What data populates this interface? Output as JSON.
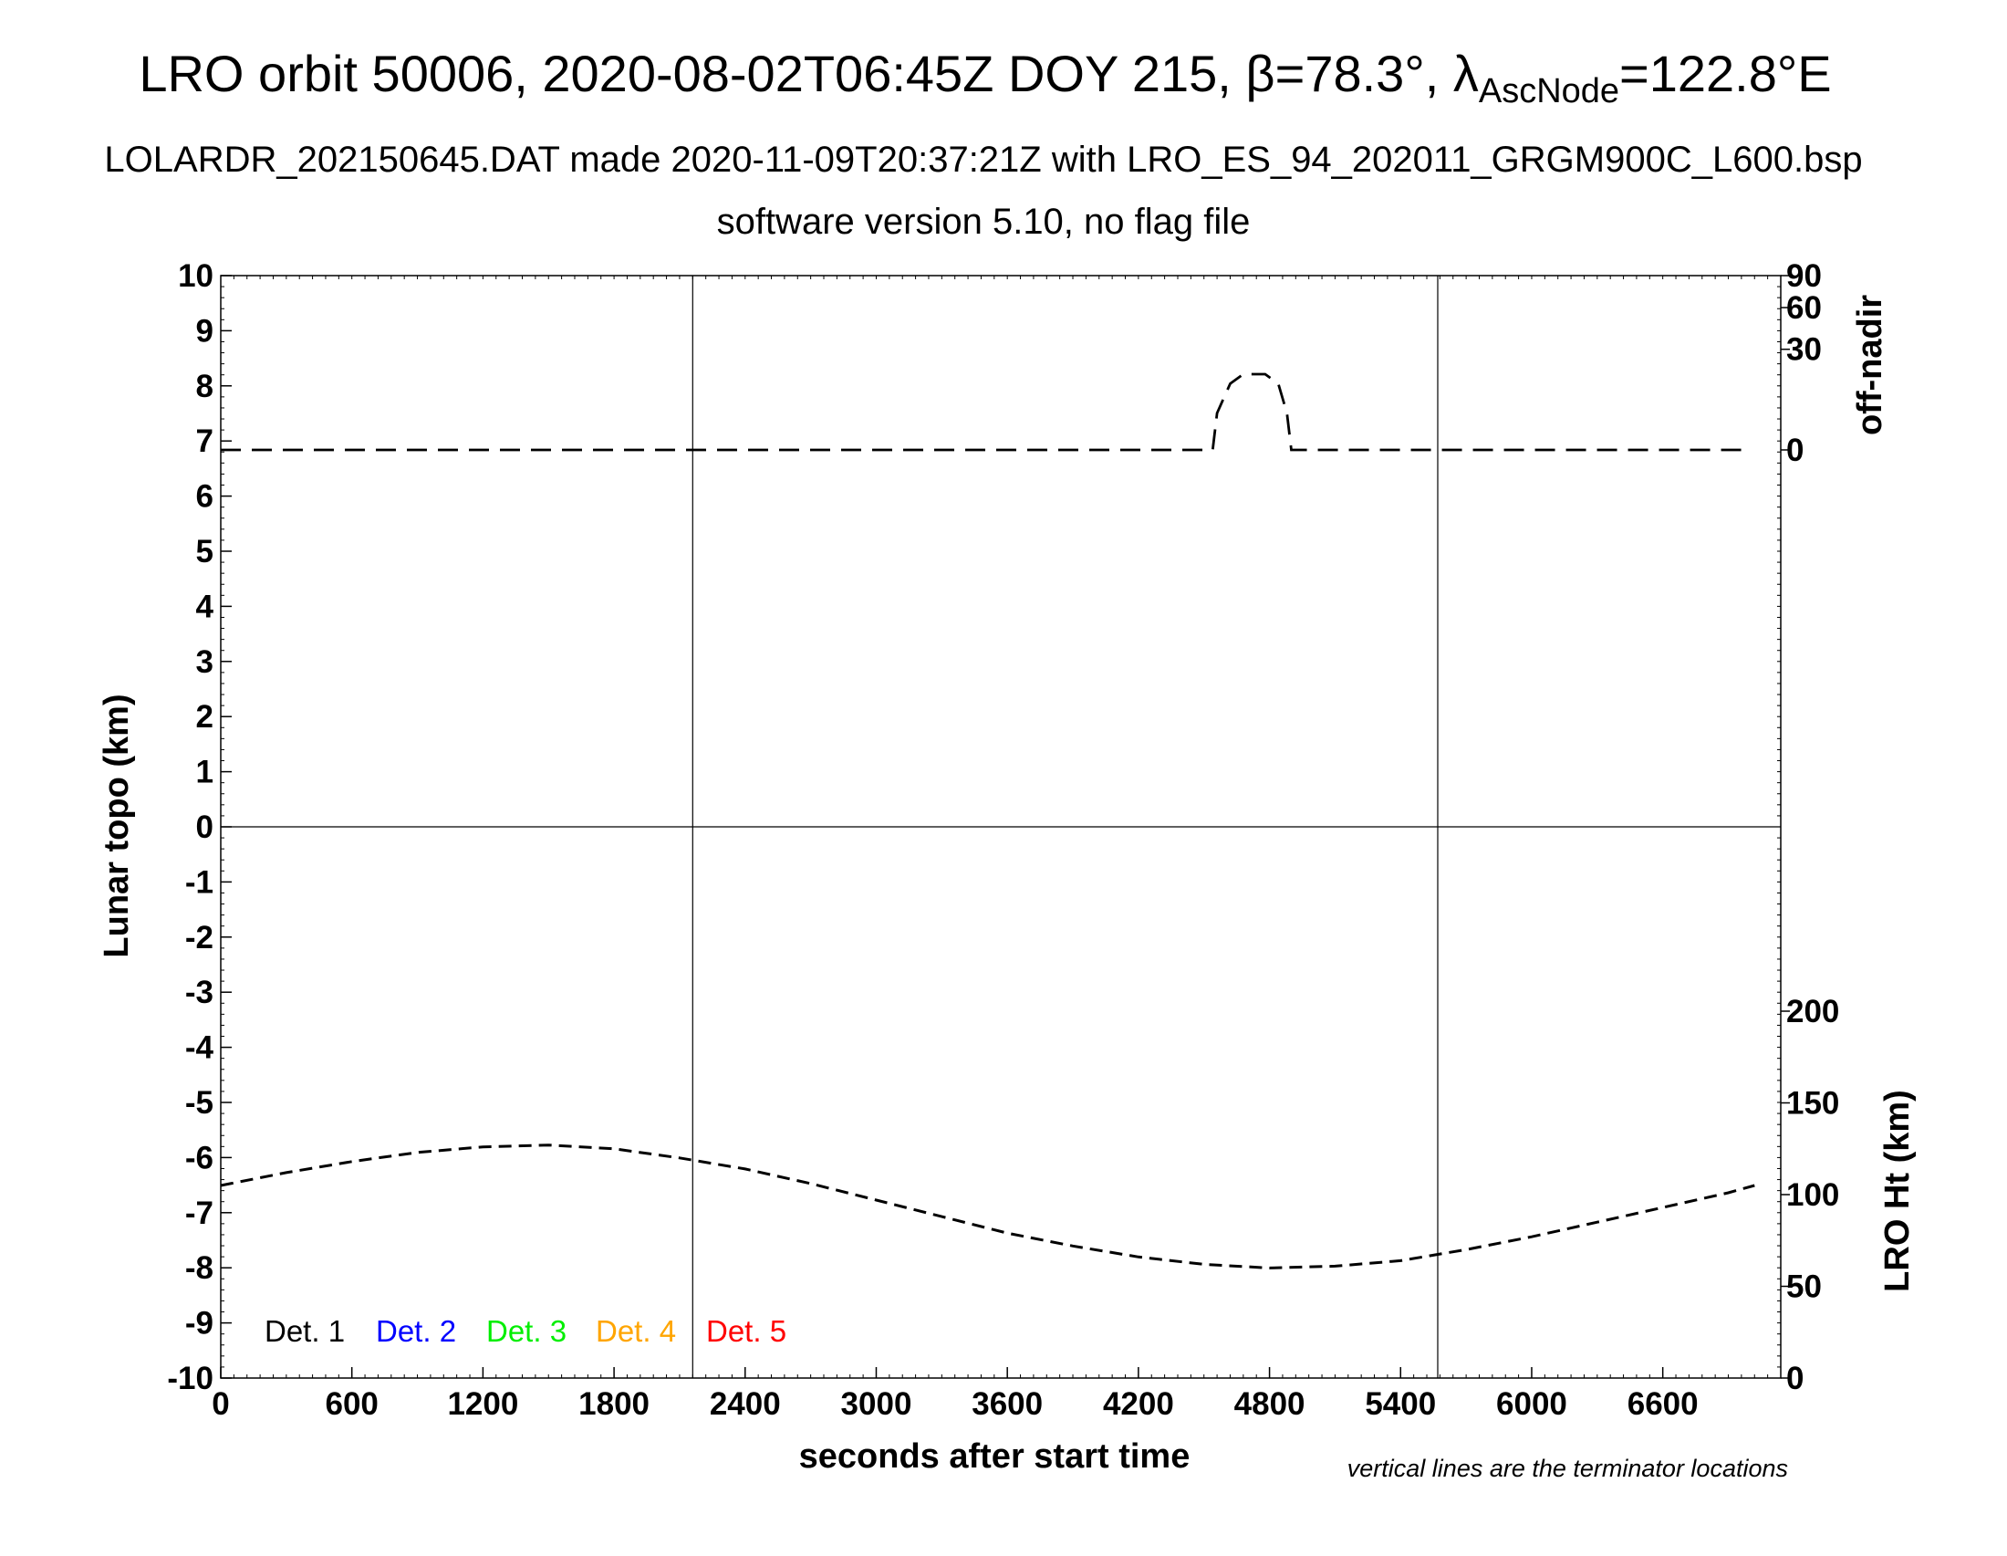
{
  "chart_data": {
    "type": "line",
    "title": {
      "main": "LRO orbit 50006, 2020-08-02T06:45Z DOY 215, ",
      "beta_symbol": "β",
      "beta_value": "=78.3°, ",
      "lambda_symbol": "λ",
      "lambda_sub": "AscNode",
      "lambda_value": "=122.8°E"
    },
    "subtitle": "LOLARDR_202150645.DAT made 2020-11-09T20:37:21Z with LRO_ES_94_202011_GRGM900C_L600.bsp",
    "subtitle2": "software version 5.10, no flag file",
    "xlabel": "seconds after start time",
    "ylabel_left": "Lunar topo (km)",
    "ylabel_right_top": "off-nadir",
    "ylabel_right_bottom": "LRO Ht (km)",
    "note": "vertical lines are the terminator locations",
    "xlim": [
      0,
      7140
    ],
    "ylim_left": [
      -10,
      10
    ],
    "x_ticks": [
      0,
      600,
      1200,
      1800,
      2400,
      3000,
      3600,
      4200,
      4800,
      5400,
      6000,
      6600
    ],
    "y_ticks_left": [
      10,
      9,
      8,
      7,
      6,
      5,
      4,
      3,
      2,
      1,
      0,
      -1,
      -2,
      -3,
      -4,
      -5,
      -6,
      -7,
      -8,
      -9,
      -10
    ],
    "y_ticks_right_top": [
      "90",
      "60",
      "30",
      "0"
    ],
    "y_ticks_right_bottom": [
      "200",
      "150",
      "100",
      "50",
      "0"
    ],
    "terminator_lines_x": [
      2160,
      5570
    ],
    "legend": [
      {
        "label": "Det. 1",
        "color": "#000000"
      },
      {
        "label": "Det. 2",
        "color": "#0000ff"
      },
      {
        "label": "Det. 3",
        "color": "#00ee00"
      },
      {
        "label": "Det. 4",
        "color": "#ffa500"
      },
      {
        "label": "Det. 5",
        "color": "#ff0000"
      }
    ],
    "series": [
      {
        "axis": "off-nadir (deg)",
        "style": "dashed",
        "x": [
          0,
          600,
          1200,
          1800,
          2400,
          3000,
          3600,
          4200,
          4540,
          4560,
          4620,
          4680,
          4780,
          4840,
          4880,
          4900,
          5400,
          6000,
          6600,
          7000
        ],
        "y": [
          0,
          0,
          0,
          0,
          0,
          0,
          0,
          0,
          0,
          4,
          13,
          17,
          17,
          13,
          4,
          0,
          0,
          0,
          0,
          0
        ]
      },
      {
        "axis": "LRO Ht (km)",
        "style": "dashed",
        "x": [
          0,
          300,
          600,
          900,
          1200,
          1500,
          1800,
          2100,
          2400,
          2700,
          3000,
          3300,
          3600,
          3900,
          4200,
          4500,
          4800,
          5100,
          5400,
          5700,
          6000,
          6300,
          6600,
          6900,
          7020
        ],
        "y": [
          105,
          112,
          118,
          123,
          126,
          127,
          125,
          120,
          114,
          106,
          97,
          88,
          79,
          72,
          66,
          62,
          60,
          61,
          64,
          70,
          77,
          85,
          93,
          101,
          105
        ]
      }
    ]
  }
}
